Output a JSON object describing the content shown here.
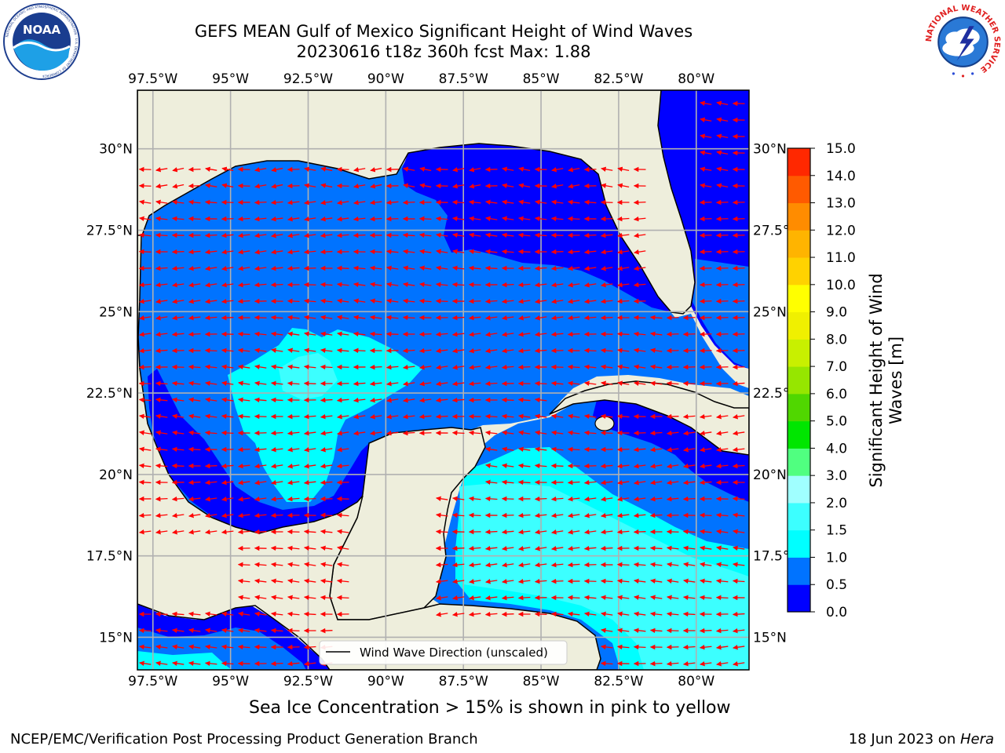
{
  "header": {
    "title_line1": "GEFS MEAN Gulf of Mexico Significant Height of Wind Waves",
    "title_line2": "20230616 t18z 360h fcst   Max: 1.88"
  },
  "logos": {
    "left": {
      "name": "noaa-logo",
      "text": "NOAA",
      "ring_text": "NATIONAL OCEANIC AND ATMOSPHERIC ADMINISTRATION · U.S. DEPARTMENT OF COMMERCE"
    },
    "right": {
      "name": "national-weather-service-logo",
      "ring_text": "NATIONAL WEATHER SERVICE"
    }
  },
  "map": {
    "lon_ticks": [
      "97.5°W",
      "95°W",
      "92.5°W",
      "90°W",
      "87.5°W",
      "85°W",
      "82.5°W",
      "80°W"
    ],
    "lat_ticks": [
      "30°N",
      "27.5°N",
      "25°N",
      "22.5°N",
      "20°N",
      "17.5°N",
      "15°N"
    ],
    "lon_range": [
      -98,
      -78.3
    ],
    "lat_range": [
      14,
      31.8
    ],
    "legend": "Wind Wave Direction (unscaled)",
    "colors": {
      "land": "#eeeedc",
      "ocean_0_0_5": "#0000ff",
      "ocean_0_5_1": "#0073ff",
      "ocean_1_1_5": "#00ffff",
      "ocean_1_5_2": "#3cffff",
      "arrows": "#ff0000",
      "grid": "#b0b0b0"
    }
  },
  "colorbar": {
    "label": "Significant Height of Wind Waves [m]",
    "ticks": [
      "0.0",
      "0.5",
      "1.0",
      "1.5",
      "2.0",
      "3.0",
      "4.0",
      "5.0",
      "6.0",
      "7.0",
      "8.0",
      "9.0",
      "10.0",
      "11.0",
      "12.0",
      "13.0",
      "14.0",
      "15.0"
    ],
    "colors": [
      "#0000ff",
      "#0073ff",
      "#00ffff",
      "#3cffff",
      "#a0ffff",
      "#50ff80",
      "#00e600",
      "#50d700",
      "#96e600",
      "#c8f000",
      "#f0f000",
      "#ffff00",
      "#ffd200",
      "#ffb400",
      "#ff8c00",
      "#ff5a00",
      "#ff2800"
    ]
  },
  "note": "Sea Ice Concentration > 15% is shown in pink to yellow",
  "footer": {
    "left": "NCEP/EMC/Verification Post Processing Product Generation Branch",
    "date": "18 Jun 2023 on ",
    "machine": "Hera"
  }
}
